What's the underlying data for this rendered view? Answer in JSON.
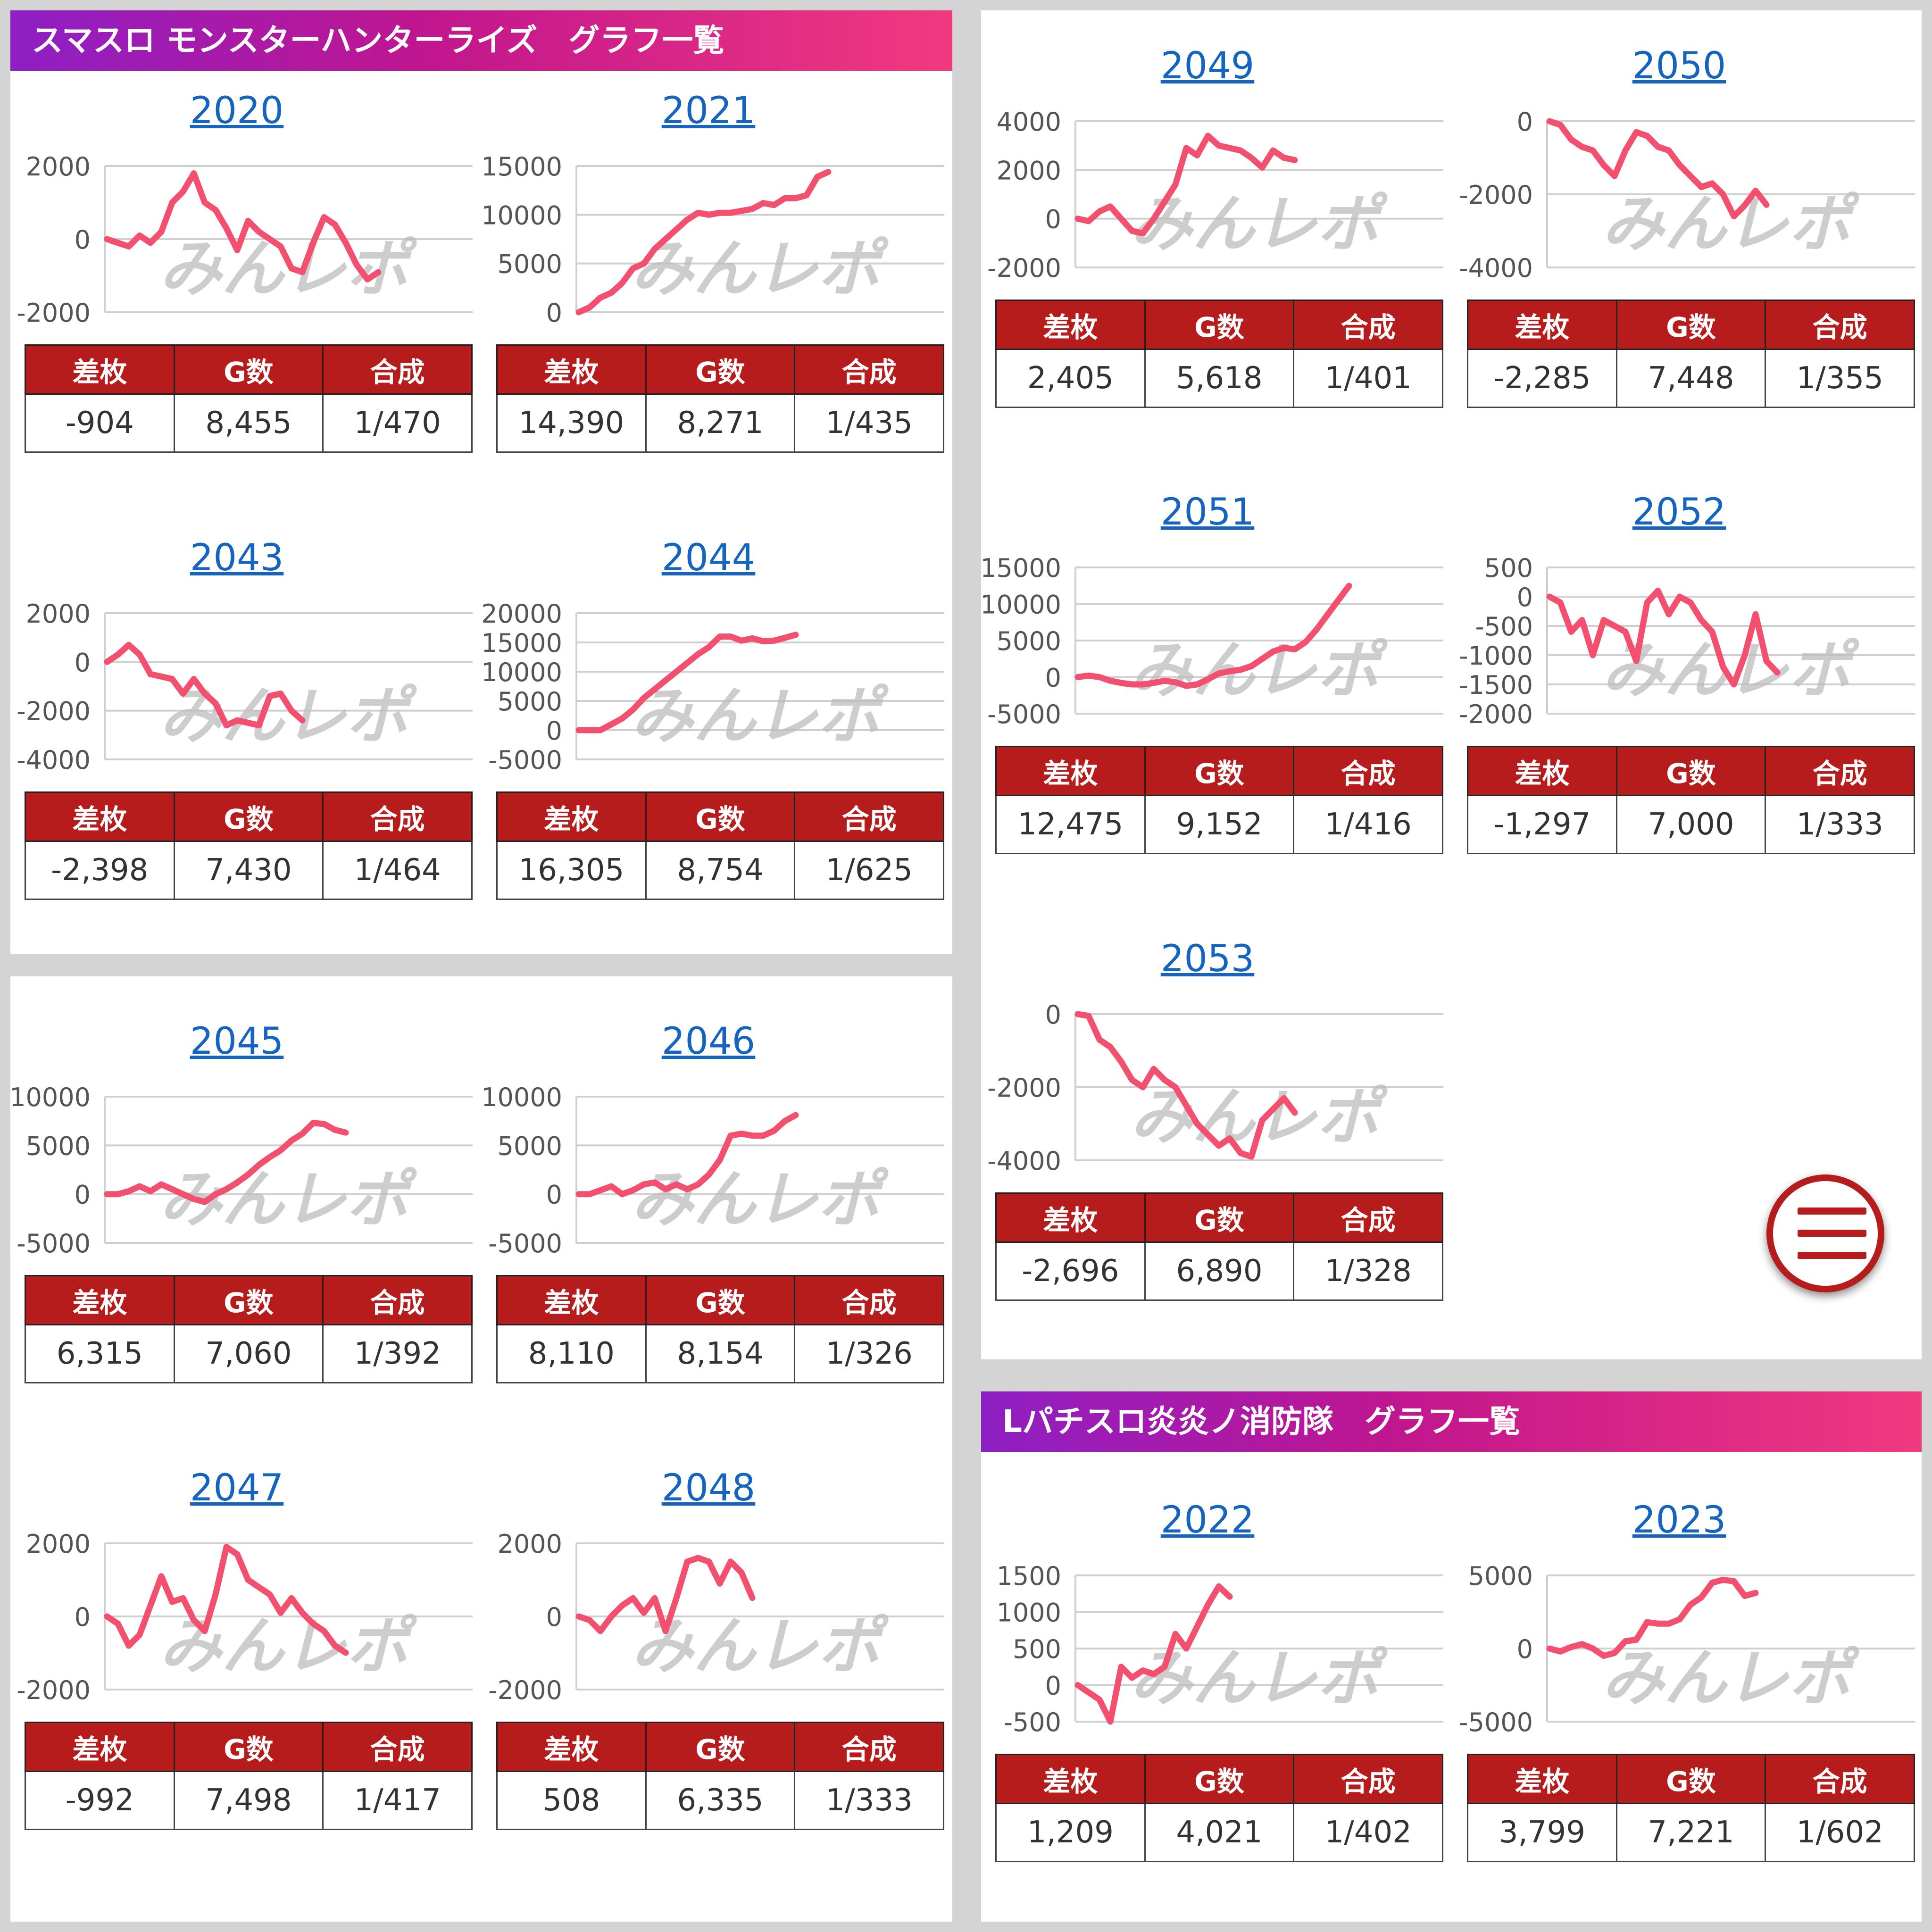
{
  "sections": [
    {
      "title": "スマスロ モンスターハンターライズ　グラフ一覧"
    },
    {
      "title": "Lパチスロ炎炎ノ消防隊　グラフ一覧"
    }
  ],
  "stat_headers": [
    "差枚",
    "G数",
    "合成"
  ],
  "watermark": "みんレポ",
  "menu": {
    "icon": "hamburger-menu-icon"
  },
  "machines": [
    {
      "id": "2020",
      "stats": {
        "samai": "-904",
        "games": "8,455",
        "gousei": "1/470"
      },
      "chart_data": {
        "type": "line",
        "yticks": [
          "2000",
          "0",
          "-2000"
        ],
        "ylim": [
          -2000,
          2000
        ],
        "values": [
          0,
          -100,
          -200,
          100,
          -100,
          200,
          1000,
          1300,
          1800,
          1000,
          800,
          300,
          -300,
          500,
          200,
          0,
          -200,
          -800,
          -900,
          -100,
          600,
          400,
          -100,
          -700,
          -1100,
          -904
        ]
      }
    },
    {
      "id": "2021",
      "stats": {
        "samai": "14,390",
        "games": "8,271",
        "gousei": "1/435"
      },
      "chart_data": {
        "type": "line",
        "yticks": [
          "15000",
          "10000",
          "5000",
          "0"
        ],
        "ylim": [
          0,
          15000
        ],
        "values": [
          0,
          500,
          1500,
          2000,
          3000,
          4500,
          5000,
          6500,
          7500,
          8500,
          9500,
          10200,
          10000,
          10200,
          10200,
          10400,
          10600,
          11200,
          11000,
          11700,
          11700,
          12000,
          13900,
          14390
        ]
      }
    },
    {
      "id": "2043",
      "stats": {
        "samai": "-2,398",
        "games": "7,430",
        "gousei": "1/464"
      },
      "chart_data": {
        "type": "line",
        "yticks": [
          "2000",
          "0",
          "-2000",
          "-4000"
        ],
        "ylim": [
          -4000,
          2000
        ],
        "values": [
          0,
          300,
          700,
          300,
          -500,
          -600,
          -700,
          -1300,
          -700,
          -1300,
          -1700,
          -2600,
          -2400,
          -2500,
          -2600,
          -1400,
          -1300,
          -2000,
          -2398
        ]
      }
    },
    {
      "id": "2044",
      "stats": {
        "samai": "16,305",
        "games": "8,754",
        "gousei": "1/625"
      },
      "chart_data": {
        "type": "line",
        "yticks": [
          "20000",
          "15000",
          "10000",
          "5000",
          "0",
          "-5000"
        ],
        "ylim": [
          -5000,
          20000
        ],
        "values": [
          0,
          0,
          0,
          1000,
          2000,
          3500,
          5500,
          7000,
          8500,
          10000,
          11500,
          13000,
          14200,
          16000,
          16000,
          15300,
          15700,
          15200,
          15300,
          15800,
          16305
        ]
      }
    },
    {
      "id": "2045",
      "stats": {
        "samai": "6,315",
        "games": "7,060",
        "gousei": "1/392"
      },
      "chart_data": {
        "type": "line",
        "yticks": [
          "10000",
          "5000",
          "0",
          "-5000"
        ],
        "ylim": [
          -5000,
          10000
        ],
        "values": [
          0,
          0,
          300,
          800,
          300,
          1000,
          500,
          0,
          -500,
          -800,
          0,
          500,
          1200,
          2000,
          3000,
          3800,
          4500,
          5500,
          6200,
          7300,
          7200,
          6600,
          6315
        ]
      }
    },
    {
      "id": "2046",
      "stats": {
        "samai": "8,110",
        "games": "8,154",
        "gousei": "1/326"
      },
      "chart_data": {
        "type": "line",
        "yticks": [
          "10000",
          "5000",
          "0",
          "-5000"
        ],
        "ylim": [
          -5000,
          10000
        ],
        "values": [
          0,
          0,
          400,
          800,
          0,
          400,
          1000,
          1200,
          500,
          1000,
          500,
          1000,
          2000,
          3500,
          6000,
          6200,
          6000,
          6000,
          6500,
          7500,
          8110
        ]
      }
    },
    {
      "id": "2047",
      "stats": {
        "samai": "-992",
        "games": "7,498",
        "gousei": "1/417"
      },
      "chart_data": {
        "type": "line",
        "yticks": [
          "2000",
          "0",
          "-2000"
        ],
        "ylim": [
          -2000,
          2000
        ],
        "values": [
          0,
          -200,
          -800,
          -500,
          300,
          1100,
          400,
          500,
          -100,
          -400,
          600,
          1900,
          1700,
          1000,
          800,
          600,
          100,
          500,
          100,
          -200,
          -400,
          -800,
          -992
        ]
      }
    },
    {
      "id": "2048",
      "stats": {
        "samai": "508",
        "games": "6,335",
        "gousei": "1/333"
      },
      "chart_data": {
        "type": "line",
        "yticks": [
          "2000",
          "0",
          "-2000"
        ],
        "ylim": [
          -2000,
          2000
        ],
        "values": [
          0,
          -100,
          -400,
          0,
          300,
          500,
          100,
          500,
          -400,
          500,
          1500,
          1600,
          1500,
          900,
          1500,
          1200,
          508
        ]
      }
    },
    {
      "id": "2049",
      "stats": {
        "samai": "2,405",
        "games": "5,618",
        "gousei": "1/401"
      },
      "chart_data": {
        "type": "line",
        "yticks": [
          "4000",
          "2000",
          "0",
          "-2000"
        ],
        "ylim": [
          -2000,
          4000
        ],
        "values": [
          0,
          -100,
          300,
          500,
          0,
          -500,
          -600,
          0,
          700,
          1400,
          2900,
          2600,
          3400,
          3000,
          2900,
          2800,
          2500,
          2100,
          2800,
          2500,
          2405
        ]
      }
    },
    {
      "id": "2050",
      "stats": {
        "samai": "-2,285",
        "games": "7,448",
        "gousei": "1/355"
      },
      "chart_data": {
        "type": "line",
        "yticks": [
          "0",
          "-2000",
          "-4000"
        ],
        "ylim": [
          -4000,
          0
        ],
        "values": [
          0,
          -100,
          -500,
          -700,
          -800,
          -1200,
          -1500,
          -800,
          -300,
          -400,
          -700,
          -800,
          -1200,
          -1500,
          -1800,
          -1700,
          -2000,
          -2600,
          -2300,
          -1900,
          -2285
        ]
      }
    },
    {
      "id": "2051",
      "stats": {
        "samai": "12,475",
        "games": "9,152",
        "gousei": "1/416"
      },
      "chart_data": {
        "type": "line",
        "yticks": [
          "15000",
          "10000",
          "5000",
          "0",
          "-5000"
        ],
        "ylim": [
          -5000,
          15000
        ],
        "values": [
          0,
          200,
          0,
          -500,
          -800,
          -1000,
          -1000,
          -800,
          -500,
          -700,
          -1200,
          -1000,
          -300,
          500,
          800,
          1000,
          1500,
          2500,
          3500,
          4000,
          3800,
          4800,
          6500,
          8500,
          10500,
          12475
        ]
      }
    },
    {
      "id": "2052",
      "stats": {
        "samai": "-1,297",
        "games": "7,000",
        "gousei": "1/333"
      },
      "chart_data": {
        "type": "line",
        "yticks": [
          "500",
          "0",
          "-500",
          "-1000",
          "-1500",
          "-2000"
        ],
        "ylim": [
          -2000,
          500
        ],
        "values": [
          0,
          -100,
          -600,
          -400,
          -1000,
          -400,
          -500,
          -600,
          -1100,
          -100,
          100,
          -300,
          0,
          -100,
          -400,
          -600,
          -1200,
          -1500,
          -1000,
          -300,
          -1100,
          -1297
        ]
      }
    },
    {
      "id": "2053",
      "stats": {
        "samai": "-2,696",
        "games": "6,890",
        "gousei": "1/328"
      },
      "chart_data": {
        "type": "line",
        "yticks": [
          "0",
          "-2000",
          "-4000"
        ],
        "ylim": [
          -4000,
          0
        ],
        "values": [
          0,
          -50,
          -700,
          -900,
          -1300,
          -1800,
          -2000,
          -1500,
          -1800,
          -2000,
          -2500,
          -3000,
          -3300,
          -3600,
          -3400,
          -3800,
          -3900,
          -2900,
          -2600,
          -2300,
          -2696
        ]
      }
    },
    {
      "id": "2022",
      "stats": {
        "samai": "1,209",
        "games": "4,021",
        "gousei": "1/402"
      },
      "chart_data": {
        "type": "line",
        "yticks": [
          "1500",
          "1000",
          "500",
          "0",
          "-500"
        ],
        "ylim": [
          -500,
          1500
        ],
        "values": [
          0,
          -100,
          -200,
          -500,
          250,
          100,
          200,
          150,
          250,
          700,
          500,
          800,
          1100,
          1350,
          1209
        ]
      }
    },
    {
      "id": "2023",
      "stats": {
        "samai": "3,799",
        "games": "7,221",
        "gousei": "1/602"
      },
      "chart_data": {
        "type": "line",
        "yticks": [
          "5000",
          "0",
          "-5000"
        ],
        "ylim": [
          -5000,
          5000
        ],
        "values": [
          0,
          -200,
          100,
          300,
          0,
          -500,
          -300,
          500,
          600,
          1800,
          1700,
          1700,
          2000,
          3000,
          3500,
          4500,
          4700,
          4600,
          3600,
          3799
        ]
      }
    }
  ]
}
